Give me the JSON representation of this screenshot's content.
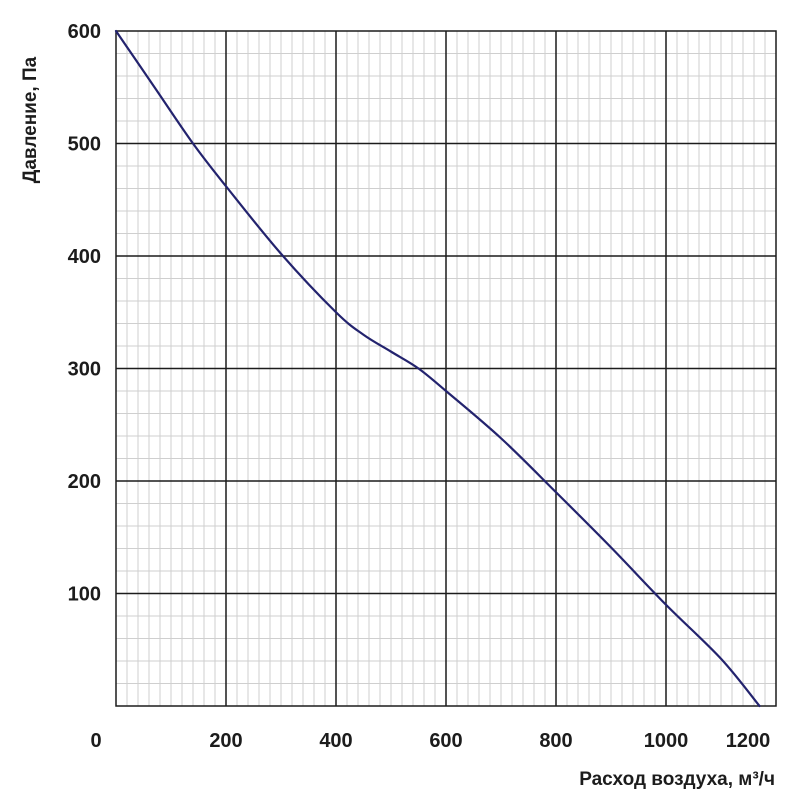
{
  "chart_data": {
    "type": "line",
    "title": "",
    "xlabel": "Расход воздуха, м³/ч",
    "ylabel": "Давление, Па",
    "xlim": [
      0,
      1200
    ],
    "ylim": [
      0,
      600
    ],
    "x_ticks": [
      0,
      200,
      400,
      600,
      800,
      1000,
      1200
    ],
    "y_ticks": [
      100,
      200,
      300,
      400,
      500,
      600
    ],
    "x_tick_labels": [
      "0",
      "200",
      "400",
      "600",
      "800",
      "1000",
      "1200"
    ],
    "y_tick_labels": [
      "100",
      "200",
      "300",
      "400",
      "500",
      "600"
    ],
    "grid": true,
    "minor_grid": true,
    "line_color": "#23236e",
    "series": [
      {
        "x": [
          0,
          70,
          140,
          200,
          300,
          400,
          450,
          500,
          550,
          600,
          700,
          800,
          900,
          1000,
          1100,
          1170
        ],
        "y": [
          600,
          550,
          500,
          462,
          402,
          350,
          330,
          315,
          300,
          280,
          238,
          190,
          141,
          90,
          42,
          0
        ]
      }
    ]
  }
}
